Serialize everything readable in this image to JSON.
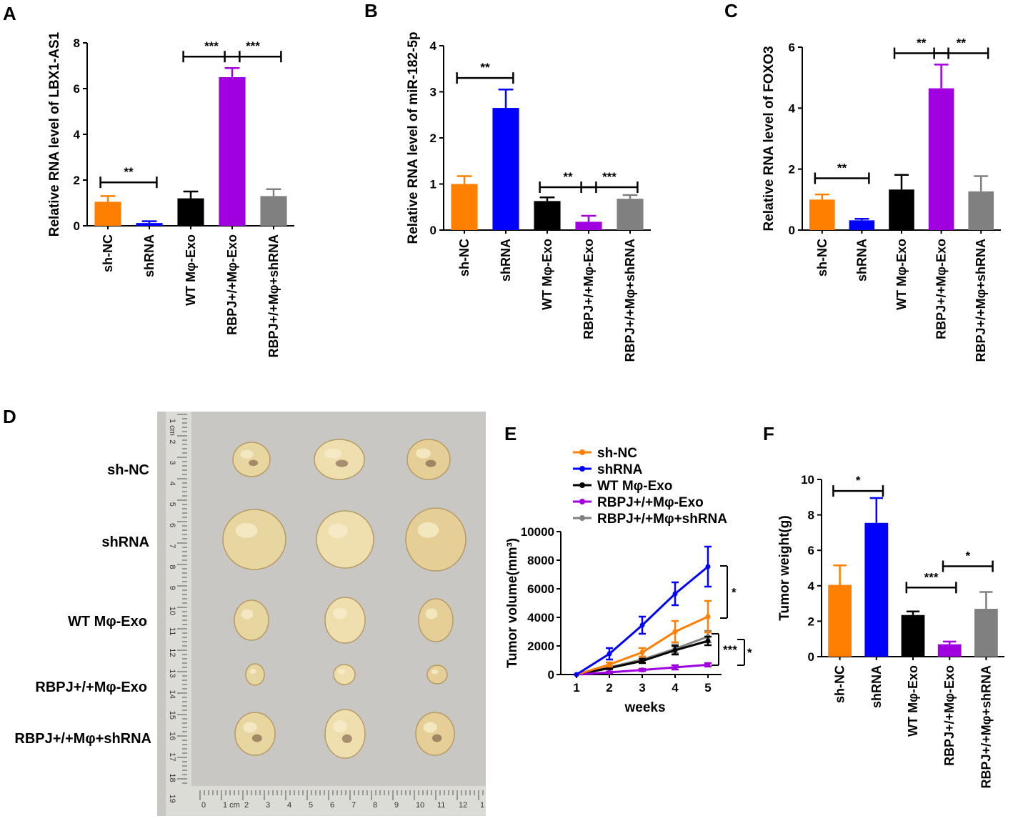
{
  "colors": {
    "sh_nc": "#ff8000",
    "shrna": "#0000ff",
    "wt": "#000000",
    "rbpj_exo": "#a000e0",
    "rbpj_shrna": "#808080"
  },
  "categories": [
    "sh-NC",
    "shRNA",
    "WT Mφ-Exo",
    "RBPJ+/+Mφ-Exo",
    "RBPJ+/+Mφ+shRNA"
  ],
  "chart_data": [
    {
      "panel": "A",
      "type": "bar",
      "ylabel": "Relative RNA level of LBX1-AS1",
      "ylim": [
        0,
        8
      ],
      "yticks": [
        0,
        2,
        4,
        6,
        8
      ],
      "categories": [
        "sh-NC",
        "shRNA",
        "WT Mφ-Exo",
        "RBPJ+/+Mφ-Exo",
        "RBPJ+/+Mφ+shRNA"
      ],
      "values": [
        1.05,
        0.12,
        1.2,
        6.5,
        1.3
      ],
      "errors": [
        0.25,
        0.08,
        0.3,
        0.4,
        0.3
      ],
      "significance": [
        {
          "from": 0,
          "to": 1,
          "y": 1.9,
          "label": "**"
        },
        {
          "from": 2,
          "to": 3,
          "y": 7.4,
          "label": "***"
        },
        {
          "from": 3,
          "to": 4,
          "y": 7.4,
          "label": "***"
        }
      ]
    },
    {
      "panel": "B",
      "type": "bar",
      "ylabel": "Relative RNA level of miR-182-5p",
      "ylim": [
        0,
        4
      ],
      "yticks": [
        0,
        1,
        2,
        3,
        4
      ],
      "categories": [
        "sh-NC",
        "shRNA",
        "WT Mφ-Exo",
        "RBPJ+/+Mφ-Exo",
        "RBPJ+/+Mφ+shRNA"
      ],
      "values": [
        1.0,
        2.65,
        0.63,
        0.18,
        0.68
      ],
      "errors": [
        0.17,
        0.4,
        0.08,
        0.13,
        0.08
      ],
      "significance": [
        {
          "from": 0,
          "to": 1,
          "y": 3.3,
          "label": "**"
        },
        {
          "from": 2,
          "to": 3,
          "y": 0.93,
          "label": "**"
        },
        {
          "from": 3,
          "to": 4,
          "y": 0.93,
          "label": "***"
        }
      ]
    },
    {
      "panel": "C",
      "type": "bar",
      "ylabel": "Relative RNA level of FOXO3",
      "ylim": [
        0,
        6
      ],
      "yticks": [
        0,
        2,
        4,
        6
      ],
      "categories": [
        "sh-NC",
        "shRNA",
        "WT Mφ-Exo",
        "RBPJ+/+Mφ-Exo",
        "RBPJ+/+Mφ+shRNA"
      ],
      "values": [
        1.0,
        0.32,
        1.33,
        4.65,
        1.27
      ],
      "errors": [
        0.17,
        0.05,
        0.48,
        0.78,
        0.5
      ],
      "significance": [
        {
          "from": 0,
          "to": 1,
          "y": 1.7,
          "label": "**"
        },
        {
          "from": 2,
          "to": 3,
          "y": 5.8,
          "label": "**"
        },
        {
          "from": 3,
          "to": 4,
          "y": 5.8,
          "label": "**"
        }
      ]
    },
    {
      "panel": "E",
      "type": "line",
      "xlabel": "weeks",
      "ylabel": "Tumor volume(mm³)",
      "x": [
        1,
        2,
        3,
        4,
        5
      ],
      "xlim": [
        1,
        5
      ],
      "ylim": [
        0,
        10000
      ],
      "yticks": [
        0,
        2000,
        4000,
        6000,
        8000,
        10000
      ],
      "series": [
        {
          "name": "sh-NC",
          "values": [
            0,
            700,
            1550,
            3000,
            4050
          ],
          "errors": [
            0,
            150,
            300,
            750,
            1100
          ]
        },
        {
          "name": "shRNA",
          "values": [
            0,
            1450,
            3450,
            5650,
            7550
          ],
          "errors": [
            0,
            400,
            600,
            800,
            1400
          ]
        },
        {
          "name": "WT Mφ-Exo",
          "values": [
            0,
            450,
            950,
            1700,
            2350
          ],
          "errors": [
            0,
            80,
            150,
            300,
            300
          ]
        },
        {
          "name": "RBPJ+/+Mφ-Exo",
          "values": [
            0,
            150,
            320,
            500,
            680
          ],
          "errors": [
            0,
            50,
            80,
            150,
            120
          ]
        },
        {
          "name": "RBPJ+/+Mφ+shRNA",
          "values": [
            0,
            500,
            1050,
            1800,
            2650
          ],
          "errors": [
            0,
            100,
            200,
            300,
            400
          ]
        }
      ],
      "significance": [
        "*",
        "***",
        "*"
      ]
    },
    {
      "panel": "F",
      "type": "bar",
      "ylabel": "Tumor weight(g)",
      "ylim": [
        0,
        10
      ],
      "yticks": [
        0,
        2,
        4,
        6,
        8,
        10
      ],
      "categories": [
        "sh-NC",
        "shRNA",
        "WT Mφ-Exo",
        "RBPJ+/+Mφ-Exo",
        "RBPJ+/+Mφ+shRNA"
      ],
      "values": [
        4.05,
        7.55,
        2.35,
        0.7,
        2.7
      ],
      "errors": [
        1.1,
        1.4,
        0.2,
        0.15,
        0.95
      ],
      "significance": [
        {
          "from": 0,
          "to": 1,
          "y": 9.35,
          "label": "*"
        },
        {
          "from": 2,
          "to": 3,
          "y": 3.9,
          "label": "***"
        },
        {
          "from": 3,
          "to": 4,
          "y": 5.1,
          "label": "*"
        }
      ]
    }
  ],
  "panel_d": {
    "letter": "D",
    "row_labels": [
      "sh-NC",
      "shRNA",
      "WT Mφ-Exo",
      "RBPJ+/+Mφ-Exo",
      "RBPJ+/+Mφ+shRNA"
    ],
    "ruler_vertical": [
      "1 cm",
      "2",
      "3",
      "4",
      "5",
      "6",
      "7",
      "8",
      "9",
      "10",
      "11",
      "12",
      "13",
      "14",
      "15",
      "16",
      "17",
      "18",
      "19"
    ],
    "ruler_horizontal": [
      "0",
      "1 cm",
      "2",
      "3",
      "4",
      "5",
      "6",
      "7",
      "8",
      "9",
      "10",
      "11",
      "12",
      "1"
    ]
  },
  "letters": {
    "a": "A",
    "b": "B",
    "c": "C",
    "e": "E",
    "f": "F"
  }
}
